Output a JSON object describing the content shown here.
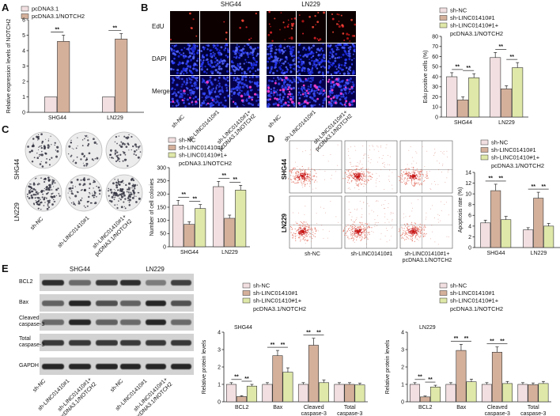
{
  "panels": {
    "A": "A",
    "B": "B",
    "C": "C",
    "D": "D",
    "E": "E"
  },
  "colors": {
    "c0": "#f2dfe1",
    "c1": "#d4b09b",
    "c2": "#dfe8a8"
  },
  "panelA": {
    "legend": [
      "pcDNA3.1",
      "pcDNA3.1/NOTCH2"
    ],
    "ylabel": "Relative expression levels of NOTCH2",
    "categories": [
      "SHG44",
      "LN229"
    ],
    "yticks": [
      "0",
      "1",
      "2",
      "3",
      "4",
      "5",
      "6"
    ],
    "sig": [
      "**",
      "**"
    ],
    "chart_data": {
      "type": "bar",
      "categories": [
        "SHG44",
        "LN229"
      ],
      "series": [
        {
          "name": "pcDNA3.1",
          "values": [
            1,
            1
          ]
        },
        {
          "name": "pcDNA3.1/NOTCH2",
          "values": [
            4.6,
            4.75
          ]
        }
      ],
      "errors": [
        [
          0,
          0
        ],
        [
          0.4,
          0.35
        ]
      ],
      "ylim": [
        0,
        6
      ]
    }
  },
  "panelB": {
    "groups": [
      "SHG44",
      "LN229"
    ],
    "rows": [
      "EdU",
      "DAPI",
      "Merge"
    ],
    "cols": [
      "sh-NC",
      "sh-LINC01410#1",
      "sh-LINC01410#1+ pcDNA3.1/NOTCH2"
    ],
    "legend": [
      "sh-NC",
      "sh-LINC01410#1",
      "sh-LINC01410#1+",
      "pcDNA3.1/NOTCH2"
    ],
    "ylabel": "Edu positive cells (%)",
    "categories": [
      "SHG44",
      "LN229"
    ],
    "yticks": [
      "0",
      "10",
      "20",
      "30",
      "40",
      "50",
      "60",
      "70",
      "80"
    ],
    "sig": [
      "**",
      "**",
      "**",
      "**"
    ],
    "chart_data": {
      "type": "bar",
      "categories": [
        "SHG44",
        "LN229"
      ],
      "series": [
        {
          "name": "sh-NC",
          "values": [
            40,
            59
          ]
        },
        {
          "name": "sh-LINC01410#1",
          "values": [
            17,
            28
          ]
        },
        {
          "name": "sh-LINC01410#1+ pcDNA3.1/NOTCH2",
          "values": [
            39,
            49
          ]
        }
      ],
      "errors": [
        [
          4,
          5
        ],
        [
          3,
          3
        ],
        [
          4,
          5
        ]
      ],
      "ylim": [
        0,
        80
      ]
    }
  },
  "panelC": {
    "rows": [
      "SHG44",
      "LN229"
    ],
    "cols": [
      "sh-NC",
      "sh-LINC01410#1",
      "sh-LINC01410#1+ pcDNA3.1/NOTCH2"
    ],
    "legend": [
      "sh-NC",
      "sh-LINC01410#1",
      "sh-LINC01410#1+",
      "pcDNA3.1/NOTCH2"
    ],
    "ylabel": "Number of cell colonies",
    "categories": [
      "SHG44",
      "LN229"
    ],
    "yticks": [
      "0",
      "50",
      "100",
      "150",
      "200",
      "250",
      "300"
    ],
    "sig": [
      "**",
      "**",
      "**",
      "**"
    ],
    "chart_data": {
      "type": "bar",
      "categories": [
        "SHG44",
        "LN229"
      ],
      "series": [
        {
          "name": "sh-NC",
          "values": [
            158,
            228
          ]
        },
        {
          "name": "sh-LINC01410#1",
          "values": [
            85,
            108
          ]
        },
        {
          "name": "sh-LINC01410#1+ pcDNA3.1/NOTCH2",
          "values": [
            145,
            215
          ]
        }
      ],
      "errors": [
        [
          18,
          20
        ],
        [
          10,
          12
        ],
        [
          15,
          18
        ]
      ],
      "ylim": [
        0,
        300
      ]
    }
  },
  "panelD": {
    "rows": [
      "SHG44",
      "LN229"
    ],
    "cols": [
      "sh-NC",
      "sh-LINC01410#1",
      "sh-LINC01410#1+ pcDNA3.1/NOTCH2"
    ],
    "legend": [
      "sh-NC",
      "sh-LINC01410#1",
      "sh-LINC01410#1+",
      "pcDNA3.1/NOTCH2"
    ],
    "ylabel": "Apoptosis rate (%)",
    "categories": [
      "SHG44",
      "LN229"
    ],
    "yticks": [
      "0",
      "2",
      "4",
      "6",
      "8",
      "10",
      "12",
      "14"
    ],
    "sig": [
      "**",
      "**",
      "**",
      "**"
    ],
    "chart_data": {
      "type": "bar",
      "categories": [
        "SHG44",
        "LN229"
      ],
      "series": [
        {
          "name": "sh-NC",
          "values": [
            4.6,
            3.3
          ]
        },
        {
          "name": "sh-LINC01410#1",
          "values": [
            10.6,
            9.2
          ]
        },
        {
          "name": "sh-LINC01410#1+ pcDNA3.1/NOTCH2",
          "values": [
            5.2,
            4.0
          ]
        }
      ],
      "errors": [
        [
          0.5,
          0.4
        ],
        [
          1.2,
          1.1
        ],
        [
          0.6,
          0.5
        ]
      ],
      "ylim": [
        0,
        14
      ]
    }
  },
  "panelE": {
    "groups": [
      "SHG44",
      "LN229"
    ],
    "bands": [
      "BCL2",
      "Bax",
      "Cleaved caspase-3",
      "Total caspase-3",
      "GAPDH"
    ],
    "cols": [
      "sh-NC",
      "sh-LINC01410#1",
      "sh-LINC01410#1+ pcDNA3.1/NOTCH2"
    ],
    "legend": [
      "sh-NC",
      "sh-LINC01410#1",
      "sh-LINC01410#1+",
      "pcDNA3.1/NOTCH2"
    ],
    "ylabel": "Relative protein levels",
    "categories": [
      "BCL2",
      "Bax",
      "Cleaved caspase-3",
      "Total caspase-3"
    ],
    "yticks": [
      "0",
      "1",
      "2",
      "3",
      "4"
    ],
    "chart1": {
      "label": "SHG44",
      "sig": [
        "**",
        "**",
        "**",
        "**",
        "**",
        "**"
      ],
      "chart_data": {
        "type": "bar",
        "categories": [
          "BCL2",
          "Bax",
          "Cleaved caspase-3",
          "Total caspase-3"
        ],
        "series": [
          {
            "name": "sh-NC",
            "values": [
              1.0,
              1.0,
              1.0,
              1.0
            ]
          },
          {
            "name": "sh-LINC01410#1",
            "values": [
              0.3,
              2.65,
              3.25,
              1.0
            ]
          },
          {
            "name": "sh-LINC01410#1+ pcDNA3.1/NOTCH2",
            "values": [
              0.9,
              1.7,
              1.1,
              0.97
            ]
          }
        ],
        "errors": [
          [
            0.1,
            0.1,
            0.1,
            0.1
          ],
          [
            0.05,
            0.3,
            0.4,
            0.1
          ],
          [
            0.1,
            0.25,
            0.15,
            0.1
          ]
        ],
        "ylim": [
          0,
          4
        ]
      }
    },
    "chart2": {
      "label": "LN229",
      "sig": [
        "**",
        "**",
        "**",
        "**",
        "**",
        "**"
      ],
      "chart_data": {
        "type": "bar",
        "categories": [
          "BCL2",
          "Bax",
          "Cleaved caspase-3",
          "Total caspase-3"
        ],
        "series": [
          {
            "name": "sh-NC",
            "values": [
              1.0,
              1.0,
              1.0,
              1.0
            ]
          },
          {
            "name": "sh-LINC01410#1",
            "values": [
              0.28,
              2.95,
              2.85,
              0.98
            ]
          },
          {
            "name": "sh-LINC01410#1+ pcDNA3.1/NOTCH2",
            "values": [
              0.85,
              1.15,
              1.05,
              1.05
            ]
          }
        ],
        "errors": [
          [
            0.1,
            0.1,
            0.1,
            0.1
          ],
          [
            0.05,
            0.35,
            0.3,
            0.1
          ],
          [
            0.1,
            0.15,
            0.12,
            0.12
          ]
        ],
        "ylim": [
          0,
          4
        ]
      }
    }
  }
}
